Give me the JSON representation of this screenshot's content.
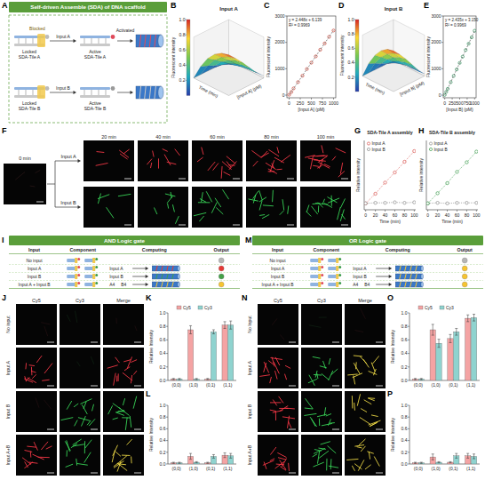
{
  "figure": {
    "letters": [
      "A",
      "B",
      "C",
      "D",
      "E",
      "F",
      "G",
      "H",
      "I",
      "J",
      "K",
      "L",
      "M",
      "N",
      "O",
      "P"
    ],
    "A": {
      "title": "Self-driven Assemble (SDA) of DNA scaffold",
      "locked_a": "Locked SDA-Tile A",
      "blocked": "Blocked",
      "input_a": "Input A",
      "active_a": "Active SDA-Tile A",
      "activated": "Activated",
      "locked_b": "Locked SDA-Tile B",
      "input_b": "Input B",
      "active_b": "Active SDA-Tile B"
    },
    "F": {
      "times": [
        "0 min",
        "20 min",
        "40 min",
        "60 min",
        "80 min",
        "100 min"
      ],
      "inputs": [
        "Input A",
        "Input B"
      ]
    },
    "I": {
      "title": "AND Logic gate",
      "headers": [
        "Input",
        "Component",
        "Computing",
        "Output"
      ],
      "inputs": [
        "No input",
        "Input A",
        "Input B",
        "Input A + Input B"
      ],
      "computing": [
        "Input A",
        "A4",
        "Input B",
        "B4"
      ],
      "output_colors": [
        "#b5b5b5",
        "#e53935",
        "#43a047",
        "#f6c431"
      ]
    },
    "M": {
      "title": "OR Logic gate",
      "headers": [
        "Input",
        "Component",
        "Computing",
        "Output"
      ],
      "inputs": [
        "No input",
        "Input A",
        "Input B",
        "Input A + Input B"
      ],
      "computing": [
        "Input A",
        "A4",
        "Input B",
        "B4"
      ],
      "output_colors": [
        "#b5b5b5",
        "#f6c431",
        "#f6c431",
        "#f6c431"
      ]
    },
    "J": {
      "channels": [
        "Cy5",
        "Cy3",
        "Merge"
      ],
      "rows": [
        "No input",
        "Input A",
        "Input B",
        "Input A+B"
      ]
    },
    "N": {
      "channels": [
        "Cy5",
        "Cy3",
        "Merge"
      ],
      "rows": [
        "No Input",
        "Input A",
        "Input B",
        "Input A+B"
      ]
    }
  },
  "chart_data": [
    {
      "type": "surface",
      "title": "Input A",
      "x_label": "Time (min)",
      "y_label": "[Input A] (pM)",
      "z_label": "Fluorescent intensity",
      "tick_labels": false,
      "xlim": [
        0,
        100
      ],
      "ylim": [
        0,
        1000
      ],
      "x": [
        0,
        20,
        40,
        60,
        80,
        100
      ],
      "y": [
        0,
        200,
        400,
        600,
        800,
        1000
      ],
      "z": [
        [
          0,
          0.02,
          0.03,
          0.04,
          0.05,
          0.05
        ],
        [
          0,
          0.08,
          0.14,
          0.18,
          0.2,
          0.21
        ],
        [
          0,
          0.15,
          0.27,
          0.35,
          0.4,
          0.42
        ],
        [
          0,
          0.22,
          0.4,
          0.52,
          0.6,
          0.63
        ],
        [
          0,
          0.3,
          0.53,
          0.68,
          0.78,
          0.82
        ],
        [
          0,
          0.37,
          0.65,
          0.84,
          0.95,
          1
        ]
      ],
      "colorbar_range": [
        0,
        1
      ],
      "colorbar_ticks": [
        0.2,
        0.4,
        0.6,
        0.8,
        {
          "value": 1,
          "label": "1.0"
        }
      ]
    },
    {
      "type": "scatter",
      "x_label": "[Input A] (pM)",
      "y_label": "Fluorescent intensity",
      "xlim": [
        -50,
        1050
      ],
      "xticks": [
        0,
        250,
        500,
        750,
        1000
      ],
      "ylim": [
        -100,
        3000
      ],
      "yticks": [
        0,
        1000,
        2000,
        3000
      ],
      "annotations": [
        "y = 2.448x + 6.139",
        "R² = 0.9969"
      ],
      "x": [
        0,
        50,
        100,
        200,
        300,
        400,
        500,
        600,
        700,
        800,
        900,
        1000
      ],
      "series": [
        {
          "name": "Input A",
          "color": "#c0392b",
          "marker": "circle",
          "values": [
            15,
            120,
            255,
            495,
            735,
            990,
            1230,
            1470,
            1720,
            1960,
            2210,
            2450
          ]
        },
        {
          "type": "line",
          "line_style": "dashed",
          "color": "#555555",
          "x": [
            0,
            1000
          ],
          "values": [
            6.1,
            2454
          ]
        }
      ]
    },
    {
      "type": "surface",
      "title": "Input B",
      "x_label": "Time (min)",
      "y_label": "[Input B] (pM)",
      "z_label": "Fluorescent intensity",
      "tick_labels": false,
      "xlim": [
        0,
        100
      ],
      "ylim": [
        0,
        1000
      ],
      "x": [
        0,
        20,
        40,
        60,
        80,
        100
      ],
      "y": [
        0,
        200,
        400,
        600,
        800,
        1000
      ],
      "z": [
        [
          0,
          0.02,
          0.03,
          0.03,
          0.04,
          0.05
        ],
        [
          0,
          0.09,
          0.15,
          0.19,
          0.21,
          0.22
        ],
        [
          0,
          0.16,
          0.28,
          0.36,
          0.41,
          0.43
        ],
        [
          0,
          0.23,
          0.41,
          0.53,
          0.61,
          0.64
        ],
        [
          0,
          0.31,
          0.54,
          0.69,
          0.79,
          0.83
        ],
        [
          0,
          0.38,
          0.66,
          0.85,
          0.96,
          1
        ]
      ],
      "colorbar_range": [
        0,
        1
      ],
      "colorbar_ticks": [
        0.2,
        0.4,
        0.6,
        0.8,
        {
          "value": 1,
          "label": "1.0"
        }
      ]
    },
    {
      "type": "scatter",
      "x_label": "[Input B] (pM)",
      "y_label": "Fluorescent intensity",
      "xlim": [
        -50,
        1050
      ],
      "xticks": [
        0,
        250,
        500,
        750,
        1000
      ],
      "ylim": [
        -100,
        3000
      ],
      "yticks": [
        0,
        1000,
        2000,
        3000
      ],
      "annotations": [
        "y = 2.435x + 3.150",
        "R² = 0.9969"
      ],
      "x": [
        0,
        50,
        100,
        200,
        300,
        400,
        500,
        600,
        700,
        800,
        900,
        1000
      ],
      "series": [
        {
          "name": "Input B",
          "color": "#2e8b57",
          "marker": "circle",
          "values": [
            10,
            125,
            240,
            490,
            730,
            975,
            1220,
            1460,
            1710,
            1950,
            2190,
            2440
          ]
        },
        {
          "type": "line",
          "line_style": "dashed",
          "color": "#555555",
          "x": [
            0,
            1000
          ],
          "values": [
            3.2,
            2438
          ]
        }
      ]
    },
    {
      "type": "line",
      "title": "SDA-Tile A assembly",
      "x_label": "Time (min)",
      "y_label": "Relative intensity",
      "tick_labels": "x",
      "legend": "top-left",
      "xlim": [
        -3,
        103
      ],
      "xticks": [
        0,
        20,
        40,
        60,
        80,
        100
      ],
      "ylim": [
        -0.1,
        1.2
      ],
      "x": [
        0,
        20,
        40,
        60,
        80,
        100
      ],
      "series": [
        {
          "name": "Input A",
          "color": "#d9534f",
          "marker": "circle",
          "line_style": "dotted",
          "values": [
            0.02,
            0.2,
            0.41,
            0.6,
            0.8,
            1
          ]
        },
        {
          "name": "Input B",
          "color": "#8a8a8a",
          "marker": "circle",
          "line_style": "dotted",
          "values": [
            0.02,
            0.03,
            0.03,
            0.04,
            0.03,
            0.04
          ]
        }
      ]
    },
    {
      "type": "line",
      "title": "SDA-Tile B assembly",
      "x_label": "Time (min)",
      "y_label": "Relative intensity",
      "tick_labels": "x",
      "legend": "top-left",
      "xlim": [
        -3,
        103
      ],
      "xticks": [
        0,
        20,
        40,
        60,
        80,
        100
      ],
      "ylim": [
        -0.1,
        1.2
      ],
      "x": [
        0,
        20,
        40,
        60,
        80,
        100
      ],
      "series": [
        {
          "name": "Input A",
          "color": "#8a8a8a",
          "marker": "circle",
          "line_style": "dotted",
          "values": [
            0.02,
            0.03,
            0.02,
            0.03,
            0.03,
            0.03
          ]
        },
        {
          "name": "Input B",
          "color": "#3a9a4a",
          "marker": "circle",
          "line_style": "dotted",
          "values": [
            0.02,
            0.21,
            0.4,
            0.61,
            0.79,
            0.99
          ]
        }
      ]
    },
    {
      "type": "bar",
      "y_label": "Relative Intensity",
      "legend": "top",
      "categories": [
        "(0,0)",
        "(1,0)",
        "(0,1)",
        "(1,1)"
      ],
      "ylim": [
        0,
        1
      ],
      "yticks": [
        {
          "value": 0,
          "label": "0.0"
        },
        0.2,
        0.4,
        0.6,
        0.8,
        {
          "value": 1,
          "label": "1.0"
        }
      ],
      "series": [
        {
          "name": "Cy5",
          "color": "#f4a3a3",
          "values": [
            0.02,
            0.75,
            0.02,
            0.82
          ],
          "errors": [
            0.01,
            0.06,
            0.01,
            0.05
          ]
        },
        {
          "name": "Cy3",
          "color": "#8fd3cf",
          "values": [
            0.02,
            0.02,
            0.72,
            0.82
          ],
          "errors": [
            0.01,
            0.01,
            0.03,
            0.06
          ]
        }
      ]
    },
    {
      "type": "bar",
      "y_label": "Relative Intensity",
      "categories": [
        "(0,0)",
        "(1,0)",
        "(0,1)",
        "(1,1)"
      ],
      "ylim": [
        0,
        1
      ],
      "yticks": [
        {
          "value": 0,
          "label": "0.0"
        },
        0.2,
        0.4,
        0.6,
        0.8,
        {
          "value": 1,
          "label": "1.0"
        }
      ],
      "series": [
        {
          "name": "Cy5",
          "color": "#f4a3a3",
          "values": [
            0.02,
            0.13,
            0.02,
            0.15
          ],
          "errors": [
            0.01,
            0.05,
            0.01,
            0.04
          ]
        },
        {
          "name": "Cy3",
          "color": "#8fd3cf",
          "values": [
            0.02,
            0.03,
            0.13,
            0.14
          ],
          "errors": [
            0.01,
            0.01,
            0.03,
            0.04
          ]
        }
      ]
    },
    {
      "type": "bar",
      "y_label": "Relative Intensity",
      "legend": "top",
      "categories": [
        "(0,0)",
        "(1,0)",
        "(0,1)",
        "(1,1)"
      ],
      "ylim": [
        0,
        1
      ],
      "yticks": [
        {
          "value": 0,
          "label": "0.0"
        },
        0.2,
        0.4,
        0.6,
        0.8,
        {
          "value": 1,
          "label": "1.0"
        }
      ],
      "series": [
        {
          "name": "Cy5",
          "color": "#f4a3a3",
          "values": [
            0.02,
            0.75,
            0.62,
            0.92
          ],
          "errors": [
            0.01,
            0.08,
            0.06,
            0.05
          ]
        },
        {
          "name": "Cy3",
          "color": "#8fd3cf",
          "values": [
            0.02,
            0.55,
            0.72,
            0.93
          ],
          "errors": [
            0.01,
            0.06,
            0.05,
            0.05
          ]
        }
      ]
    },
    {
      "type": "bar",
      "y_label": "Relative Intensity",
      "categories": [
        "(0,0)",
        "(1,0)",
        "(0,1)",
        "(1,1)"
      ],
      "ylim": [
        0,
        1
      ],
      "yticks": [
        {
          "value": 0,
          "label": "0.0"
        },
        0.2,
        0.4,
        0.6,
        0.8,
        {
          "value": 1,
          "label": "1.0"
        }
      ],
      "series": [
        {
          "name": "Cy5",
          "color": "#f4a3a3",
          "values": [
            0.02,
            0.12,
            0.03,
            0.14
          ],
          "errors": [
            0.01,
            0.05,
            0.01,
            0.04
          ]
        },
        {
          "name": "Cy3",
          "color": "#8fd3cf",
          "values": [
            0.02,
            0.03,
            0.14,
            0.13
          ],
          "errors": [
            0.01,
            0.01,
            0.04,
            0.04
          ]
        }
      ]
    }
  ]
}
